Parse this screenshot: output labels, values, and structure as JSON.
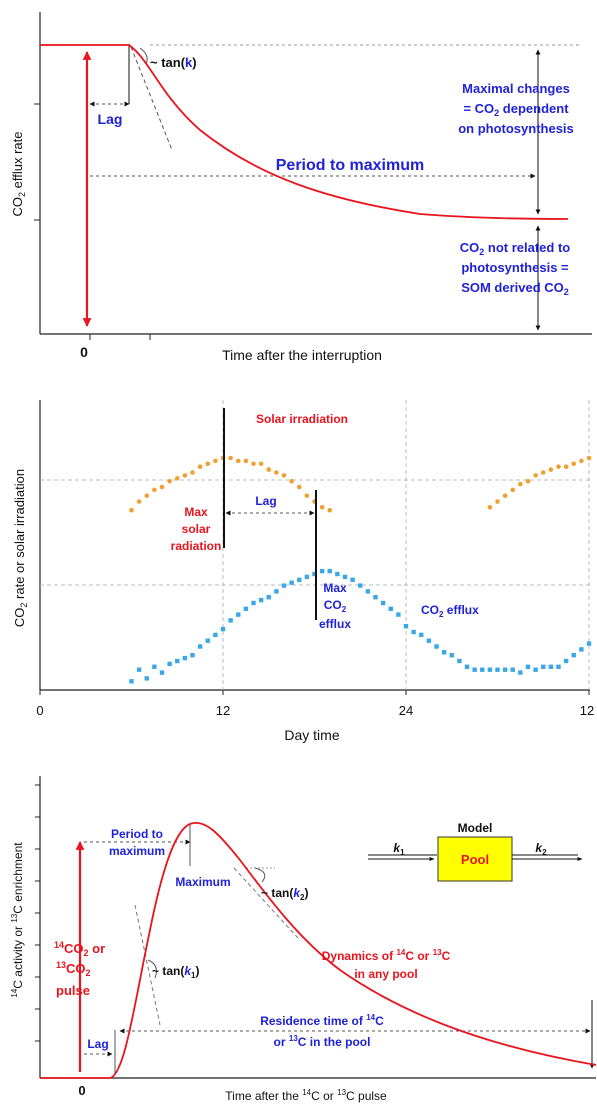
{
  "colors": {
    "red": "#e8141e",
    "blue": "#1f22d6",
    "orange": "#f0a030",
    "cyan": "#3aa8e6",
    "pool_fill": "#ffff00",
    "dashed": "#777777"
  },
  "panel1": {
    "ylabel": "CO",
    "ylabel_sub": "2",
    "ylabel_tail": " efflux rate",
    "xlabel": "Time after the interruption",
    "zero_label": "0",
    "tan_prefix": "~ tan(",
    "tan_k": "k",
    "tan_suffix": ")",
    "lag": "Lag",
    "period_to_maximum": "Period to maximum",
    "maximal_changes": [
      "Maximal changes",
      "= CO",
      "2",
      " dependent",
      "on photosynthesis"
    ],
    "not_related": [
      "CO",
      "2",
      " not related to",
      "photosynthesis =",
      "SOM derived CO",
      "2"
    ]
  },
  "panel2": {
    "ylabel": "CO",
    "ylabel_sub": "2",
    "ylabel_tail": " rate  or  solar irradiation",
    "xlabel": "Day time",
    "xticks": [
      "0",
      "12",
      "24",
      "12"
    ],
    "solar_irradiation": "Solar irradiation",
    "lag": "Lag",
    "max_solar": [
      "Max",
      "solar",
      "radiation"
    ],
    "max_co2": [
      "Max",
      "CO",
      "2",
      "efflux"
    ],
    "co2_efflux_label": "CO",
    "co2_efflux_sub": "2",
    "co2_efflux_tail": " efflux"
  },
  "panel3": {
    "ylabel_parts": [
      "14",
      "C activity  or  ",
      "13",
      "C enrichment"
    ],
    "xlabel_parts": [
      "Time after the ",
      "14",
      "C or ",
      "13",
      "C pulse"
    ],
    "zero_label": "0",
    "period": [
      "Period to",
      "maximum"
    ],
    "maximum": "Maximum",
    "tan_k2": [
      "~ tan(",
      "k",
      "2",
      ")"
    ],
    "tan_k1": [
      "~ tan(",
      "k",
      "1",
      ")"
    ],
    "pulse": [
      "14",
      "CO",
      "2",
      " or",
      "13",
      "CO",
      "2",
      "pulse"
    ],
    "lag": "Lag",
    "dynamics": [
      "Dynamics of ",
      "14",
      "C or ",
      "13",
      "C",
      "in any pool"
    ],
    "residence": [
      "Residence time of ",
      "14",
      "C",
      "or ",
      "13",
      "C in the pool"
    ],
    "model_title": "Model",
    "pool": "Pool",
    "k1": [
      "k",
      "1"
    ],
    "k2": [
      "k",
      "2"
    ]
  },
  "chart_data": [
    {
      "type": "scatter",
      "series": [
        {
          "name": "Solar irradiation",
          "x": [
            6,
            6.5,
            7,
            7.5,
            8,
            8.5,
            9,
            9.5,
            10,
            10.5,
            11,
            11.5,
            12,
            12.5,
            13,
            13.5,
            14,
            14.5,
            15,
            15.5,
            16,
            16.5,
            17,
            17.5,
            18,
            18.5,
            19,
            29.5,
            30,
            30.5,
            31,
            31.5,
            32,
            32.5,
            33,
            33.5,
            34,
            34.5,
            35,
            35.5,
            36
          ],
          "y": [
            0.62,
            0.65,
            0.67,
            0.69,
            0.7,
            0.72,
            0.73,
            0.74,
            0.75,
            0.77,
            0.78,
            0.79,
            0.8,
            0.8,
            0.79,
            0.79,
            0.78,
            0.78,
            0.76,
            0.75,
            0.74,
            0.72,
            0.7,
            0.67,
            0.65,
            0.63,
            0.62,
            0.63,
            0.65,
            0.67,
            0.69,
            0.71,
            0.72,
            0.74,
            0.75,
            0.76,
            0.77,
            0.77,
            0.78,
            0.79,
            0.8
          ]
        },
        {
          "name": "CO2 efflux",
          "x": [
            6,
            6.5,
            7,
            7.5,
            8,
            8.5,
            9,
            9.5,
            10,
            10.5,
            11,
            11.5,
            12,
            12.5,
            13,
            13.5,
            14,
            14.5,
            15,
            15.5,
            16,
            16.5,
            17,
            17.5,
            18,
            18.5,
            19,
            19.5,
            20,
            20.5,
            21,
            21.5,
            22,
            22.5,
            23,
            23.5,
            24,
            24.5,
            25,
            25.5,
            26,
            26.5,
            27,
            27.5,
            28,
            28.5,
            29,
            29.5,
            30,
            30.5,
            31,
            31.5,
            32,
            32.5,
            33,
            33.5,
            34,
            34.5,
            35,
            35.5,
            36
          ],
          "y": [
            0.03,
            0.07,
            0.04,
            0.08,
            0.06,
            0.09,
            0.1,
            0.11,
            0.12,
            0.15,
            0.17,
            0.19,
            0.21,
            0.24,
            0.26,
            0.28,
            0.3,
            0.31,
            0.32,
            0.34,
            0.36,
            0.37,
            0.38,
            0.39,
            0.4,
            0.41,
            0.41,
            0.4,
            0.39,
            0.38,
            0.36,
            0.34,
            0.32,
            0.3,
            0.28,
            0.26,
            0.22,
            0.2,
            0.19,
            0.17,
            0.15,
            0.13,
            0.12,
            0.1,
            0.08,
            0.07,
            0.07,
            0.07,
            0.07,
            0.07,
            0.07,
            0.06,
            0.08,
            0.07,
            0.08,
            0.08,
            0.08,
            0.1,
            0.12,
            0.14,
            0.16
          ]
        }
      ]
    }
  ]
}
